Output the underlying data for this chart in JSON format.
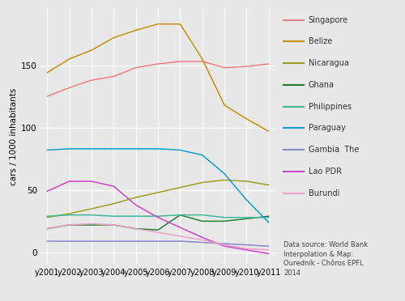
{
  "years": [
    "y2001",
    "y2002",
    "y2003",
    "y2004",
    "y2005",
    "y2006",
    "y2007",
    "y2008",
    "y2009",
    "y2010",
    "y2011"
  ],
  "series": [
    {
      "name": "Singapore",
      "values": [
        125,
        132,
        138,
        141,
        148,
        151,
        153,
        153,
        148,
        149,
        151
      ],
      "color": "#f08080"
    },
    {
      "name": "Belize",
      "values": [
        144,
        155,
        162,
        172,
        178,
        183,
        183,
        155,
        118,
        107,
        97
      ],
      "color": "#c8900a"
    },
    {
      "name": "Nicaragua",
      "values": [
        28,
        31,
        35,
        39,
        44,
        48,
        52,
        56,
        58,
        57,
        54
      ],
      "color": "#a0a020"
    },
    {
      "name": "Ghana",
      "values": [
        19,
        22,
        22,
        22,
        19,
        18,
        30,
        25,
        25,
        27,
        29
      ],
      "color": "#208030"
    },
    {
      "name": "Philippines",
      "values": [
        29,
        30,
        30,
        29,
        29,
        29,
        30,
        30,
        28,
        28,
        28
      ],
      "color": "#40b898"
    },
    {
      "name": "Paraguay",
      "values": [
        82,
        83,
        83,
        83,
        83,
        83,
        82,
        78,
        63,
        42,
        24
      ],
      "color": "#10a0d0"
    },
    {
      "name": "Gambia  The",
      "values": [
        9,
        9,
        9,
        9,
        9,
        9,
        9,
        8,
        7,
        6,
        5
      ],
      "color": "#8888cc"
    },
    {
      "name": "Lao PDR",
      "values": [
        49,
        57,
        57,
        53,
        38,
        28,
        20,
        12,
        5,
        2,
        -1
      ],
      "color": "#cc44cc"
    },
    {
      "name": "Burundi",
      "values": [
        19,
        22,
        23,
        22,
        19,
        16,
        13,
        10,
        6,
        3,
        2
      ],
      "color": "#f0a0c8"
    }
  ],
  "ylabel": "cars / 1000 inhabitants",
  "ylim": [
    -10,
    195
  ],
  "yticks": [
    0,
    50,
    100,
    150
  ],
  "bg_color": "#e8e8e8",
  "grid_color": "#ffffff",
  "annotation": "Data source: World Bank\nInterpolation & Map:\nOuredník - Chôros EPFL\n2014"
}
